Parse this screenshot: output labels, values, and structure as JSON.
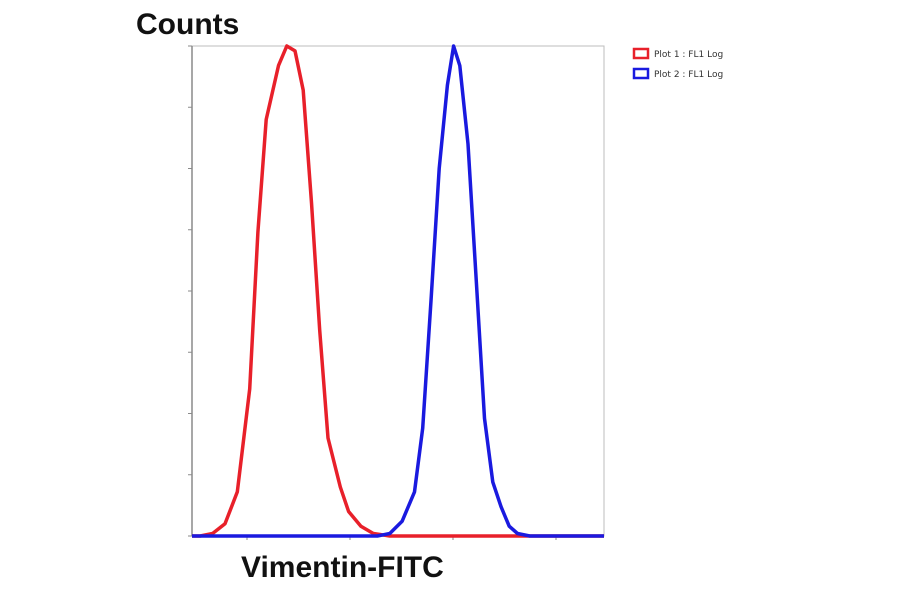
{
  "chart_data": {
    "type": "line",
    "title": "",
    "xlabel": "Vimentin-FITC",
    "ylabel": "Counts",
    "xscale": "log",
    "grid": false,
    "legend_position": "top-right",
    "ylim": [
      0,
      100
    ],
    "series": [
      {
        "name": "Plot 1 : FL1 Log",
        "color": "#e8202a",
        "points": [
          [
            0,
            0
          ],
          [
            2,
            0
          ],
          [
            5,
            0.5
          ],
          [
            8,
            2.5
          ],
          [
            11,
            9
          ],
          [
            14,
            30
          ],
          [
            16,
            62
          ],
          [
            18,
            85
          ],
          [
            21,
            96
          ],
          [
            23,
            100
          ],
          [
            25,
            99
          ],
          [
            27,
            91
          ],
          [
            29,
            68
          ],
          [
            31,
            42
          ],
          [
            33,
            20
          ],
          [
            36,
            10
          ],
          [
            38,
            5
          ],
          [
            41,
            2
          ],
          [
            44,
            0.5
          ],
          [
            48,
            0
          ],
          [
            52,
            0
          ],
          [
            56,
            0
          ],
          [
            60,
            0
          ],
          [
            75,
            0
          ],
          [
            100,
            0
          ]
        ]
      },
      {
        "name": "Plot 2 : FL1 Log",
        "color": "#1a1adf",
        "points": [
          [
            0,
            0
          ],
          [
            30,
            0
          ],
          [
            45,
            0
          ],
          [
            48,
            0.5
          ],
          [
            51,
            3
          ],
          [
            54,
            9
          ],
          [
            56,
            22
          ],
          [
            58,
            48
          ],
          [
            60,
            75
          ],
          [
            62,
            92
          ],
          [
            63.5,
            100
          ],
          [
            65,
            96
          ],
          [
            67,
            80
          ],
          [
            69,
            52
          ],
          [
            71,
            24
          ],
          [
            73,
            11
          ],
          [
            75,
            6
          ],
          [
            77,
            2
          ],
          [
            79,
            0.5
          ],
          [
            82,
            0
          ],
          [
            100,
            0
          ]
        ]
      }
    ]
  }
}
